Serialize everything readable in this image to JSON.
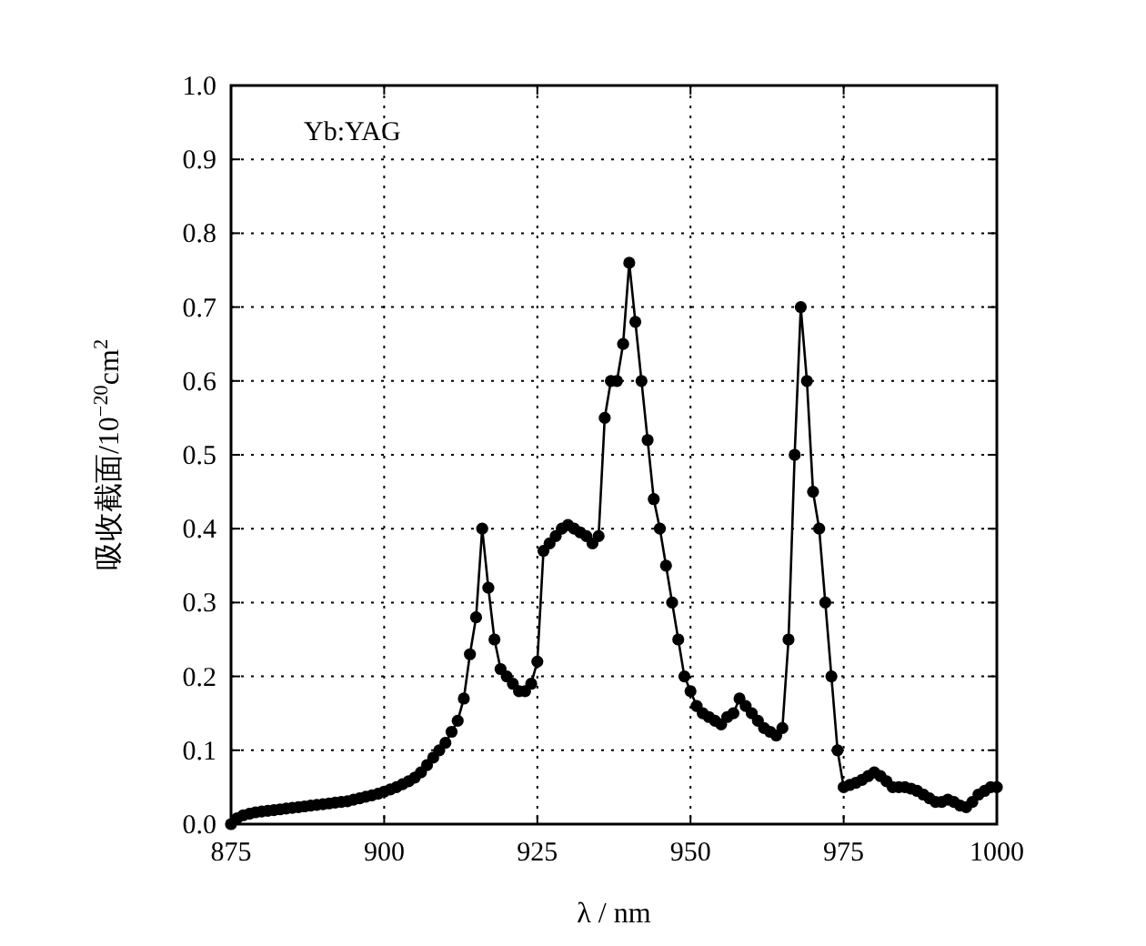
{
  "chart_data": {
    "type": "line",
    "xlabel": "λ / nm",
    "ylabel": "吸收截面/10$^{−20}$cm$^{2}$",
    "annotations": [
      "Yb:YAG"
    ],
    "x": [
      875,
      876,
      877,
      878,
      879,
      880,
      881,
      882,
      883,
      884,
      885,
      886,
      887,
      888,
      889,
      890,
      891,
      892,
      893,
      894,
      895,
      896,
      897,
      898,
      899,
      900,
      901,
      902,
      903,
      904,
      905,
      906,
      907,
      908,
      909,
      910,
      911,
      912,
      913,
      914,
      915,
      916,
      917,
      918,
      919,
      920,
      921,
      922,
      923,
      924,
      925,
      926,
      927,
      928,
      929,
      930,
      931,
      932,
      933,
      934,
      935,
      936,
      937,
      938,
      939,
      940,
      941,
      942,
      943,
      944,
      945,
      946,
      947,
      948,
      949,
      950,
      951,
      952,
      953,
      954,
      955,
      956,
      957,
      958,
      959,
      960,
      961,
      962,
      963,
      964,
      965,
      966,
      967,
      968,
      969,
      970,
      971,
      972,
      973,
      974,
      975,
      976,
      977,
      978,
      979,
      980,
      981,
      982,
      983,
      984,
      985,
      986,
      987,
      988,
      989,
      990,
      991,
      992,
      993,
      994,
      995,
      996,
      997,
      998,
      999,
      1000
    ],
    "series": [
      {
        "color": "#000000",
        "values": [
          0.0,
          0.008,
          0.012,
          0.014,
          0.016,
          0.017,
          0.018,
          0.019,
          0.02,
          0.021,
          0.022,
          0.023,
          0.024,
          0.025,
          0.026,
          0.027,
          0.028,
          0.029,
          0.03,
          0.031,
          0.033,
          0.035,
          0.037,
          0.039,
          0.041,
          0.044,
          0.047,
          0.05,
          0.054,
          0.058,
          0.063,
          0.07,
          0.08,
          0.09,
          0.1,
          0.11,
          0.125,
          0.14,
          0.17,
          0.23,
          0.28,
          0.4,
          0.32,
          0.25,
          0.21,
          0.2,
          0.19,
          0.18,
          0.18,
          0.19,
          0.22,
          0.37,
          0.38,
          0.39,
          0.4,
          0.405,
          0.4,
          0.395,
          0.39,
          0.38,
          0.39,
          0.55,
          0.6,
          0.6,
          0.65,
          0.76,
          0.68,
          0.6,
          0.52,
          0.44,
          0.4,
          0.35,
          0.3,
          0.25,
          0.2,
          0.18,
          0.16,
          0.15,
          0.145,
          0.14,
          0.135,
          0.145,
          0.15,
          0.17,
          0.16,
          0.15,
          0.14,
          0.13,
          0.125,
          0.12,
          0.13,
          0.25,
          0.5,
          0.7,
          0.6,
          0.45,
          0.4,
          0.3,
          0.2,
          0.1,
          0.05,
          0.053,
          0.056,
          0.06,
          0.065,
          0.07,
          0.065,
          0.058,
          0.05,
          0.05,
          0.05,
          0.048,
          0.045,
          0.04,
          0.035,
          0.03,
          0.03,
          0.033,
          0.03,
          0.025,
          0.023,
          0.03,
          0.04,
          0.045,
          0.05,
          0.05
        ]
      }
    ],
    "xlim": [
      875,
      1000
    ],
    "xticks": [
      875,
      900,
      925,
      950,
      975,
      1000
    ],
    "ylim": [
      0,
      1
    ],
    "yticks": [
      {
        "value": 0,
        "label": "0.0"
      },
      0.1,
      0.2,
      0.3,
      0.4,
      0.5,
      0.6,
      0.7,
      0.8,
      0.9,
      {
        "value": 1,
        "label": "1.0"
      }
    ],
    "grid": true,
    "marker": "circle",
    "line_style": "solid"
  }
}
